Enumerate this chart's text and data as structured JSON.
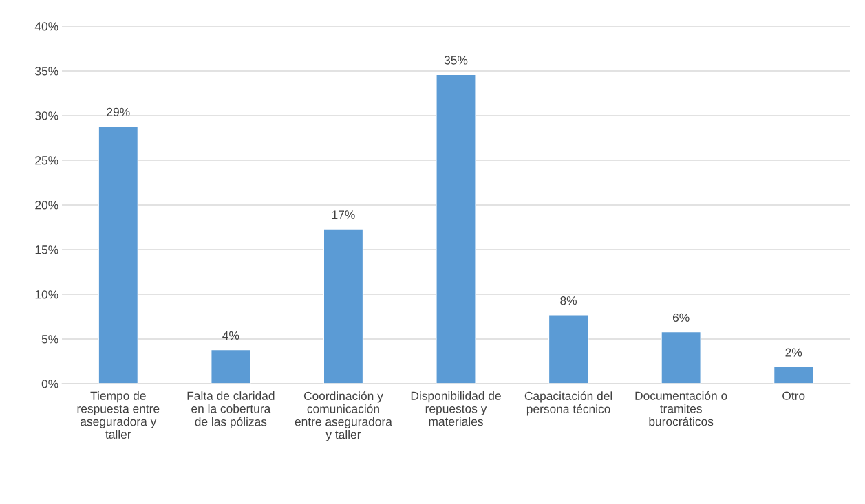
{
  "chart_data": {
    "type": "bar",
    "categories": [
      "Tiempo de respuesta entre aseguradora y taller",
      "Falta de claridad en la cobertura de las pólizas",
      "Coordinación y comunicación entre aseguradora y taller",
      "Disponibilidad de repuestos y materiales",
      "Capacitación del persona técnico",
      "Documentación o tramites burocráticos",
      "Otro"
    ],
    "values": [
      28.8,
      3.8,
      17.3,
      34.6,
      7.7,
      5.8,
      1.9
    ],
    "value_labels": [
      "29%",
      "4%",
      "17%",
      "35%",
      "8%",
      "6%",
      "2%"
    ],
    "color": "#5b9bd5",
    "ylim": [
      0,
      40
    ],
    "yticks": [
      {
        "value": 0,
        "label": "0%"
      },
      {
        "value": 5,
        "label": "5%"
      },
      {
        "value": 10,
        "label": "10%"
      },
      {
        "value": 15,
        "label": "15%"
      },
      {
        "value": 20,
        "label": "20%"
      },
      {
        "value": 25,
        "label": "25%"
      },
      {
        "value": 30,
        "label": "30%"
      },
      {
        "value": 35,
        "label": "35%"
      },
      {
        "value": 40,
        "label": "40%"
      }
    ],
    "grid": "y"
  }
}
